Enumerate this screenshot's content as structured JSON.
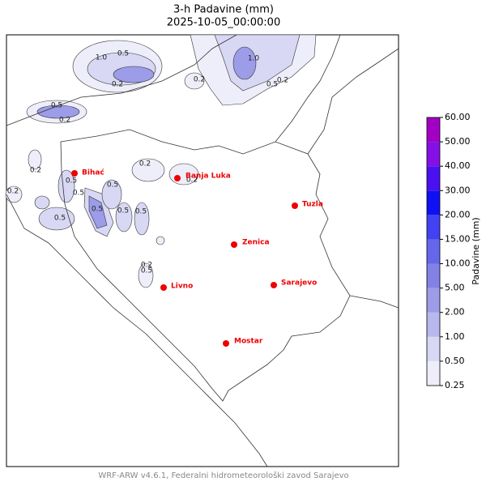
{
  "header": {
    "title": "3-h Padavine (mm)",
    "subtitle": "2025-10-05_00:00:00"
  },
  "cities": [
    "Bihać",
    "Banja Luka",
    "Tuzla",
    "Zenica",
    "Livno",
    "Sarajevo",
    "Mostar"
  ],
  "contour_labels": [
    "1.0",
    "0.5",
    "0.2",
    "1.0",
    "0.5",
    "0.2",
    "0.2",
    "0.5",
    "0.2",
    "0.2",
    "0.5",
    "0.2",
    "0.5",
    "0.2",
    "0.2",
    "0.5",
    "0.5",
    "0.5",
    "0.5",
    "0.5",
    "0.2",
    "0.5"
  ],
  "colorbar": {
    "label": "Padavine (mm)",
    "ticks": [
      {
        "value": 0.25,
        "label": "0.25"
      },
      {
        "value": 0.5,
        "label": "0.50"
      },
      {
        "value": 1,
        "label": "1.00"
      },
      {
        "value": 2,
        "label": "2.00"
      },
      {
        "value": 5,
        "label": "5.00"
      },
      {
        "value": 10,
        "label": "10.00"
      },
      {
        "value": 15,
        "label": "15.00"
      },
      {
        "value": 20,
        "label": "20.00"
      },
      {
        "value": 30,
        "label": "30.00"
      },
      {
        "value": 40,
        "label": "40.00"
      },
      {
        "value": 50,
        "label": "50.00"
      },
      {
        "value": 60,
        "label": "60.00"
      }
    ],
    "colors": [
      "#eeeefa",
      "#d8d8f4",
      "#b8b8ee",
      "#9c9ce8",
      "#8282e6",
      "#6666ea",
      "#4242f2",
      "#1010f4",
      "#4a10f0",
      "#8410e6",
      "#a400c4"
    ]
  },
  "footer": "WRF-ARW v4.6.1, Federalni hidrometeorološki zavod Sarajevo"
}
